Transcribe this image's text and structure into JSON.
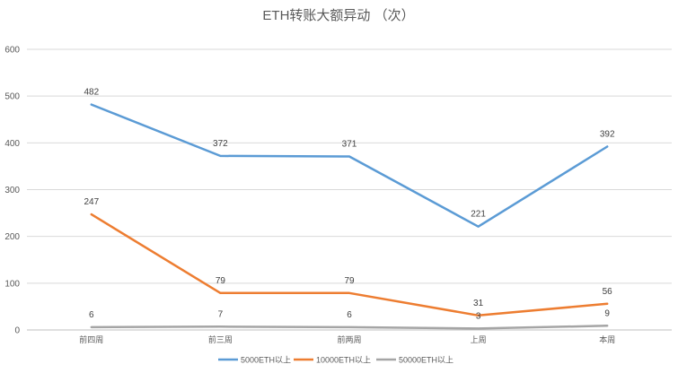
{
  "chart_data": {
    "type": "line",
    "title": "ETH转账大额异动 （次）",
    "categories": [
      "前四周",
      "前三周",
      "前两周",
      "上周",
      "本周"
    ],
    "yticks": [
      0,
      100,
      200,
      300,
      400,
      500,
      600
    ],
    "ylim": [
      0,
      600
    ],
    "grid": true,
    "legend_position": "bottom",
    "series": [
      {
        "name": "5000ETH以上",
        "values": [
          482,
          372,
          371,
          221,
          392
        ],
        "color": "#5B9BD5"
      },
      {
        "name": "10000ETH以上",
        "values": [
          247,
          79,
          79,
          31,
          56
        ],
        "color": "#ED7D31"
      },
      {
        "name": "50000ETH以上",
        "values": [
          6,
          7,
          6,
          3,
          9
        ],
        "color": "#A5A5A5"
      }
    ]
  }
}
